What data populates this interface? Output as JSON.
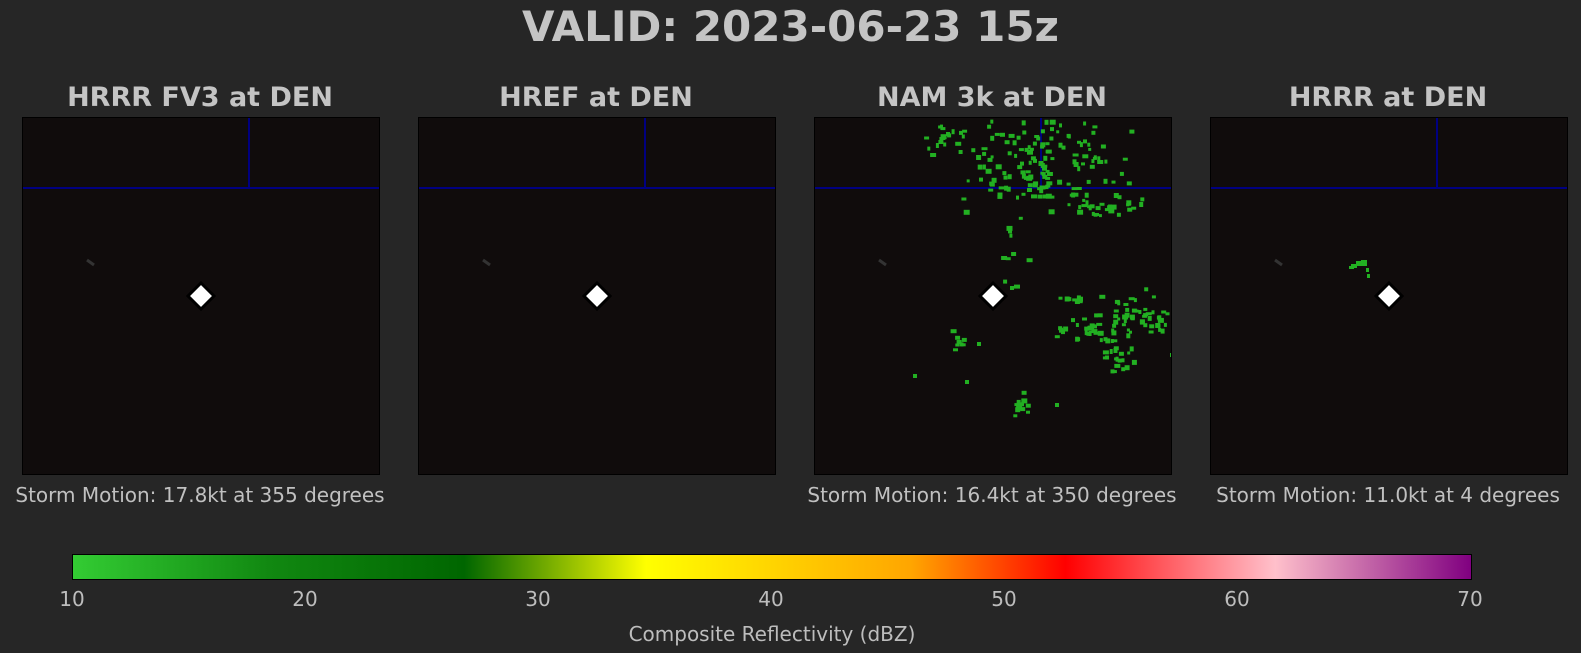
{
  "title": "VALID: 2023-06-23 15z",
  "panels": [
    {
      "title": "HRRR FV3 at DEN",
      "caption": "Storm Motion: 17.8kt at 355 degrees"
    },
    {
      "title": "HREF at DEN",
      "caption": ""
    },
    {
      "title": "NAM 3k at DEN",
      "caption": "Storm Motion: 16.4kt at 350 degrees"
    },
    {
      "title": "HRRR at DEN",
      "caption": "Storm Motion: 11.0kt at 4 degrees"
    }
  ],
  "colorbar": {
    "label": "Composite Reflectivity (dBZ)",
    "ticks": [
      "10",
      "20",
      "30",
      "40",
      "50",
      "60",
      "70"
    ],
    "range": [
      10,
      70
    ],
    "colors": [
      "#33cc33",
      "#118811",
      "#006600",
      "#ffff00",
      "#ffa500",
      "#ff0000",
      "#ffc0cb",
      "#800080"
    ]
  },
  "map_style": {
    "background": "#100c0c",
    "boundary_color": "#000080",
    "echo_color": "#22b022",
    "station_marker": "white-diamond"
  }
}
